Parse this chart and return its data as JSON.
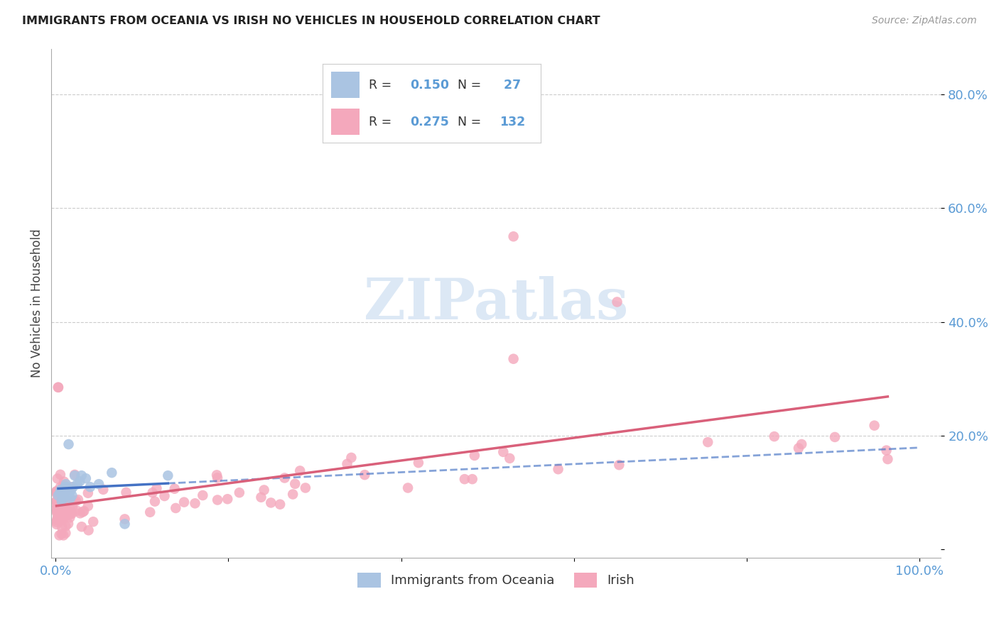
{
  "title": "IMMIGRANTS FROM OCEANIA VS IRISH NO VEHICLES IN HOUSEHOLD CORRELATION CHART",
  "source": "Source: ZipAtlas.com",
  "ylabel": "No Vehicles in Household",
  "legend_r_oceania": "0.150",
  "legend_n_oceania": " 27",
  "legend_r_irish": "0.275",
  "legend_n_irish": "132",
  "color_oceania": "#aac4e2",
  "color_oceania_line": "#4472c4",
  "color_irish": "#f4a8bc",
  "color_irish_line": "#d9607a",
  "color_tick": "#5b9bd5",
  "watermark_color": "#dce8f5"
}
